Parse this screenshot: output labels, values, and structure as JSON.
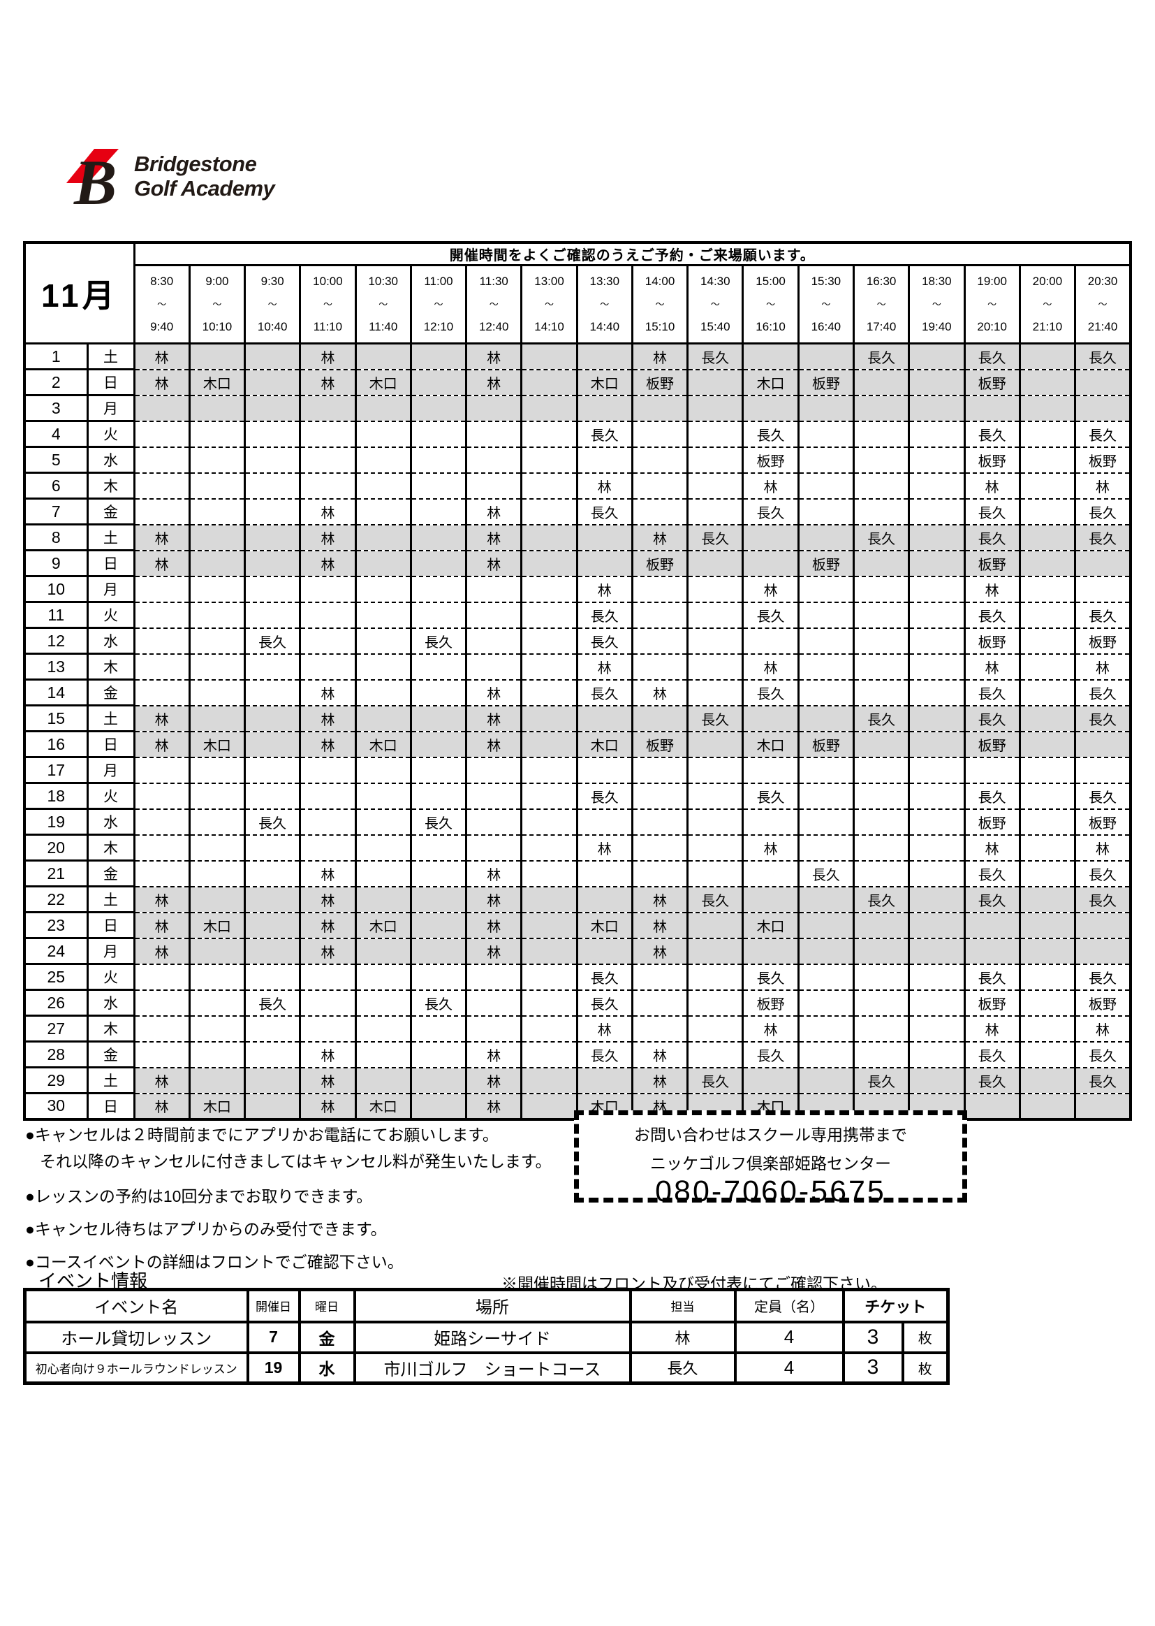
{
  "colors": {
    "logo_red": "#e60012",
    "row_shade": "#d9d9d9"
  },
  "logo": {
    "mark_letter": "B",
    "brand_line1": "Bridgestone",
    "brand_line2": "Golf Academy"
  },
  "banner": {
    "month": "11月",
    "notice": "開催時間をよくご確認のうえご予約・ご来場願います。",
    "range_separator": "〜"
  },
  "time_slots": [
    {
      "start": "8:30",
      "end": "9:40"
    },
    {
      "start": "9:00",
      "end": "10:10"
    },
    {
      "start": "9:30",
      "end": "10:40"
    },
    {
      "start": "10:00",
      "end": "11:10"
    },
    {
      "start": "10:30",
      "end": "11:40"
    },
    {
      "start": "11:00",
      "end": "12:10"
    },
    {
      "start": "11:30",
      "end": "12:40"
    },
    {
      "start": "13:00",
      "end": "14:10"
    },
    {
      "start": "13:30",
      "end": "14:40"
    },
    {
      "start": "14:00",
      "end": "15:10"
    },
    {
      "start": "14:30",
      "end": "15:40"
    },
    {
      "start": "15:00",
      "end": "16:10"
    },
    {
      "start": "15:30",
      "end": "16:40"
    },
    {
      "start": "16:30",
      "end": "17:40"
    },
    {
      "start": "18:30",
      "end": "19:40"
    },
    {
      "start": "19:00",
      "end": "20:10"
    },
    {
      "start": "20:00",
      "end": "21:10"
    },
    {
      "start": "20:30",
      "end": "21:40"
    }
  ],
  "schedule_days": [
    {
      "day": "1",
      "weekday": "土",
      "shaded": true,
      "cells": [
        "林",
        "",
        "",
        "林",
        "",
        "",
        "林",
        "",
        "",
        "林",
        "長久",
        "",
        "",
        "長久",
        "",
        "長久",
        "",
        "長久"
      ]
    },
    {
      "day": "2",
      "weekday": "日",
      "shaded": true,
      "cells": [
        "林",
        "木口",
        "",
        "林",
        "木口",
        "",
        "林",
        "",
        "木口",
        "板野",
        "",
        "木口",
        "板野",
        "",
        "",
        "板野",
        "",
        ""
      ]
    },
    {
      "day": "3",
      "weekday": "月",
      "shaded": true,
      "cells": [
        "",
        "",
        "",
        "",
        "",
        "",
        "",
        "",
        "",
        "",
        "",
        "",
        "",
        "",
        "",
        "",
        "",
        ""
      ]
    },
    {
      "day": "4",
      "weekday": "火",
      "shaded": false,
      "cells": [
        "",
        "",
        "",
        "",
        "",
        "",
        "",
        "",
        "長久",
        "",
        "",
        "長久",
        "",
        "",
        "",
        "長久",
        "",
        "長久"
      ]
    },
    {
      "day": "5",
      "weekday": "水",
      "shaded": false,
      "cells": [
        "",
        "",
        "",
        "",
        "",
        "",
        "",
        "",
        "",
        "",
        "",
        "板野",
        "",
        "",
        "",
        "板野",
        "",
        "板野"
      ]
    },
    {
      "day": "6",
      "weekday": "木",
      "shaded": false,
      "cells": [
        "",
        "",
        "",
        "",
        "",
        "",
        "",
        "",
        "林",
        "",
        "",
        "林",
        "",
        "",
        "",
        "林",
        "",
        "林"
      ]
    },
    {
      "day": "7",
      "weekday": "金",
      "shaded": false,
      "cells": [
        "",
        "",
        "",
        "林",
        "",
        "",
        "林",
        "",
        "長久",
        "",
        "",
        "長久",
        "",
        "",
        "",
        "長久",
        "",
        "長久"
      ]
    },
    {
      "day": "8",
      "weekday": "土",
      "shaded": true,
      "cells": [
        "林",
        "",
        "",
        "林",
        "",
        "",
        "林",
        "",
        "",
        "林",
        "長久",
        "",
        "",
        "長久",
        "",
        "長久",
        "",
        "長久"
      ]
    },
    {
      "day": "9",
      "weekday": "日",
      "shaded": true,
      "cells": [
        "林",
        "",
        "",
        "林",
        "",
        "",
        "林",
        "",
        "",
        "板野",
        "",
        "",
        "板野",
        "",
        "",
        "板野",
        "",
        ""
      ]
    },
    {
      "day": "10",
      "weekday": "月",
      "shaded": false,
      "cells": [
        "",
        "",
        "",
        "",
        "",
        "",
        "",
        "",
        "林",
        "",
        "",
        "林",
        "",
        "",
        "",
        "林",
        "",
        ""
      ]
    },
    {
      "day": "11",
      "weekday": "火",
      "shaded": false,
      "cells": [
        "",
        "",
        "",
        "",
        "",
        "",
        "",
        "",
        "長久",
        "",
        "",
        "長久",
        "",
        "",
        "",
        "長久",
        "",
        "長久"
      ]
    },
    {
      "day": "12",
      "weekday": "水",
      "shaded": false,
      "cells": [
        "",
        "",
        "長久",
        "",
        "",
        "長久",
        "",
        "",
        "長久",
        "",
        "",
        "",
        "",
        "",
        "",
        "板野",
        "",
        "板野"
      ]
    },
    {
      "day": "13",
      "weekday": "木",
      "shaded": false,
      "cells": [
        "",
        "",
        "",
        "",
        "",
        "",
        "",
        "",
        "林",
        "",
        "",
        "林",
        "",
        "",
        "",
        "林",
        "",
        "林"
      ]
    },
    {
      "day": "14",
      "weekday": "金",
      "shaded": false,
      "cells": [
        "",
        "",
        "",
        "林",
        "",
        "",
        "林",
        "",
        "長久",
        "林",
        "",
        "長久",
        "",
        "",
        "",
        "長久",
        "",
        "長久"
      ]
    },
    {
      "day": "15",
      "weekday": "土",
      "shaded": true,
      "cells": [
        "林",
        "",
        "",
        "林",
        "",
        "",
        "林",
        "",
        "",
        "",
        "長久",
        "",
        "",
        "長久",
        "",
        "長久",
        "",
        "長久"
      ]
    },
    {
      "day": "16",
      "weekday": "日",
      "shaded": true,
      "cells": [
        "林",
        "木口",
        "",
        "林",
        "木口",
        "",
        "林",
        "",
        "木口",
        "板野",
        "",
        "木口",
        "板野",
        "",
        "",
        "板野",
        "",
        ""
      ]
    },
    {
      "day": "17",
      "weekday": "月",
      "shaded": false,
      "cells": [
        "",
        "",
        "",
        "",
        "",
        "",
        "",
        "",
        "",
        "",
        "",
        "",
        "",
        "",
        "",
        "",
        "",
        ""
      ]
    },
    {
      "day": "18",
      "weekday": "火",
      "shaded": false,
      "cells": [
        "",
        "",
        "",
        "",
        "",
        "",
        "",
        "",
        "長久",
        "",
        "",
        "長久",
        "",
        "",
        "",
        "長久",
        "",
        "長久"
      ]
    },
    {
      "day": "19",
      "weekday": "水",
      "shaded": false,
      "cells": [
        "",
        "",
        "長久",
        "",
        "",
        "長久",
        "",
        "",
        "",
        "",
        "",
        "",
        "",
        "",
        "",
        "板野",
        "",
        "板野"
      ]
    },
    {
      "day": "20",
      "weekday": "木",
      "shaded": false,
      "cells": [
        "",
        "",
        "",
        "",
        "",
        "",
        "",
        "",
        "林",
        "",
        "",
        "林",
        "",
        "",
        "",
        "林",
        "",
        "林"
      ]
    },
    {
      "day": "21",
      "weekday": "金",
      "shaded": false,
      "cells": [
        "",
        "",
        "",
        "林",
        "",
        "",
        "林",
        "",
        "",
        "",
        "",
        "",
        "長久",
        "",
        "",
        "長久",
        "",
        "長久"
      ]
    },
    {
      "day": "22",
      "weekday": "土",
      "shaded": true,
      "cells": [
        "林",
        "",
        "",
        "林",
        "",
        "",
        "林",
        "",
        "",
        "林",
        "長久",
        "",
        "",
        "長久",
        "",
        "長久",
        "",
        "長久"
      ]
    },
    {
      "day": "23",
      "weekday": "日",
      "shaded": true,
      "cells": [
        "林",
        "木口",
        "",
        "林",
        "木口",
        "",
        "林",
        "",
        "木口",
        "林",
        "",
        "木口",
        "",
        "",
        "",
        "",
        "",
        ""
      ]
    },
    {
      "day": "24",
      "weekday": "月",
      "shaded": true,
      "cells": [
        "林",
        "",
        "",
        "林",
        "",
        "",
        "林",
        "",
        "",
        "林",
        "",
        "",
        "",
        "",
        "",
        "",
        "",
        ""
      ]
    },
    {
      "day": "25",
      "weekday": "火",
      "shaded": false,
      "cells": [
        "",
        "",
        "",
        "",
        "",
        "",
        "",
        "",
        "長久",
        "",
        "",
        "長久",
        "",
        "",
        "",
        "長久",
        "",
        "長久"
      ]
    },
    {
      "day": "26",
      "weekday": "水",
      "shaded": false,
      "cells": [
        "",
        "",
        "長久",
        "",
        "",
        "長久",
        "",
        "",
        "長久",
        "",
        "",
        "板野",
        "",
        "",
        "",
        "板野",
        "",
        "板野"
      ]
    },
    {
      "day": "27",
      "weekday": "木",
      "shaded": false,
      "cells": [
        "",
        "",
        "",
        "",
        "",
        "",
        "",
        "",
        "林",
        "",
        "",
        "林",
        "",
        "",
        "",
        "林",
        "",
        "林"
      ]
    },
    {
      "day": "28",
      "weekday": "金",
      "shaded": false,
      "cells": [
        "",
        "",
        "",
        "林",
        "",
        "",
        "林",
        "",
        "長久",
        "林",
        "",
        "長久",
        "",
        "",
        "",
        "長久",
        "",
        "長久"
      ]
    },
    {
      "day": "29",
      "weekday": "土",
      "shaded": true,
      "cells": [
        "林",
        "",
        "",
        "林",
        "",
        "",
        "林",
        "",
        "",
        "林",
        "長久",
        "",
        "",
        "長久",
        "",
        "長久",
        "",
        "長久"
      ]
    },
    {
      "day": "30",
      "weekday": "日",
      "shaded": true,
      "cells": [
        "林",
        "木口",
        "",
        "林",
        "木口",
        "",
        "林",
        "",
        "木口",
        "林",
        "",
        "木口",
        "",
        "",
        "",
        "",
        "",
        ""
      ]
    }
  ],
  "notes": [
    "●キャンセルは２時間前までにアプリかお電話にてお願いします。",
    "それ以降のキャンセルに付きましてはキャンセル料が発生いたします。",
    "●レッスンの予約は10回分までお取りできます。",
    "●キャンセル待ちはアプリからのみ受付できます。",
    "●コースイベントの詳細はフロントでご確認下さい。"
  ],
  "contact": {
    "line1": "お問い合わせはスクール専用携帯まで",
    "line2": "ニッケゴルフ倶楽部姫路センター",
    "phone": "080-7060-5675"
  },
  "event_section": {
    "title": "イベント情報",
    "note": "※開催時間はフロント及び受付表にてご確認下さい。",
    "headers": [
      "イベント名",
      "開催日",
      "曜日",
      "場所",
      "担当",
      "定員（名）",
      "チケット"
    ],
    "rows": [
      {
        "name": "ホール貸切レッスン",
        "date": "7",
        "weekday": "金",
        "place": "姫路シーサイド",
        "instructor": "林",
        "capacity": "4",
        "tickets": "3",
        "ticket_unit": "枚"
      },
      {
        "name": "初心者向け９ホールラウンドレッスン",
        "date": "19",
        "weekday": "水",
        "place": "市川ゴルフ　ショートコース",
        "instructor": "長久",
        "capacity": "4",
        "tickets": "3",
        "ticket_unit": "枚"
      }
    ]
  }
}
